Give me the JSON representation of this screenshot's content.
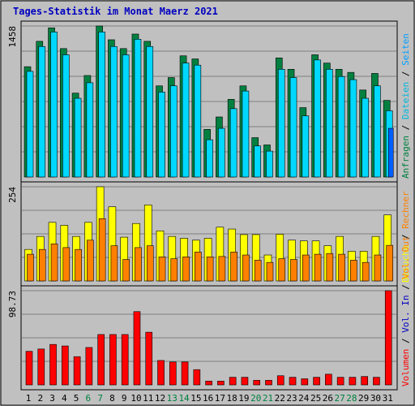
{
  "title": "Tages-Statistik im Monat Maerz 2021",
  "colors": {
    "background": "#c0c0c0",
    "grid": "#808080",
    "title": "#0000c0",
    "hits": "#008040",
    "files": "#00d8ff",
    "pages": "#0060ff",
    "visits": "#ffff00",
    "sites": "#ff8000",
    "kbytes_in": "#ff0000",
    "weekend_label": "#008040"
  },
  "chart_data": [
    {
      "type": "bar",
      "panel": "top",
      "ylabel_tick": "1458",
      "ylim": [
        0,
        1458
      ],
      "categories": [
        "1",
        "2",
        "3",
        "4",
        "5",
        "6",
        "7",
        "8",
        "9",
        "10",
        "11",
        "12",
        "13",
        "14",
        "15",
        "16",
        "17",
        "18",
        "19",
        "20",
        "21",
        "22",
        "23",
        "24",
        "25",
        "26",
        "27",
        "28",
        "29",
        "30",
        "31"
      ],
      "weekend_days": [
        "6",
        "7",
        "13",
        "14",
        "20",
        "21",
        "27",
        "28"
      ],
      "series": [
        {
          "name": "Anfragen",
          "values": [
            1065,
            1310,
            1440,
            1240,
            810,
            980,
            1458,
            1325,
            1240,
            1380,
            1310,
            880,
            960,
            1170,
            1140,
            460,
            580,
            750,
            880,
            380,
            310,
            1150,
            1040,
            670,
            1180,
            1100,
            1040,
            1010,
            840,
            1000,
            740
          ]
        },
        {
          "name": "Dateien",
          "values": [
            1020,
            1260,
            1400,
            1180,
            760,
            910,
            1400,
            1260,
            1180,
            1330,
            1260,
            820,
            880,
            1100,
            1080,
            360,
            470,
            660,
            830,
            300,
            250,
            1040,
            960,
            590,
            1130,
            1040,
            970,
            940,
            760,
            880,
            640
          ]
        },
        {
          "name": "Seiten",
          "values": [
            0,
            0,
            0,
            0,
            0,
            0,
            0,
            0,
            0,
            0,
            0,
            0,
            0,
            0,
            0,
            0,
            0,
            0,
            0,
            0,
            0,
            0,
            0,
            0,
            0,
            0,
            0,
            0,
            0,
            0,
            470
          ]
        }
      ]
    },
    {
      "type": "bar",
      "panel": "middle",
      "ylabel_tick": "254",
      "ylim": [
        0,
        254
      ],
      "categories": [
        "1",
        "2",
        "3",
        "4",
        "5",
        "6",
        "7",
        "8",
        "9",
        "10",
        "11",
        "12",
        "13",
        "14",
        "15",
        "16",
        "17",
        "18",
        "19",
        "20",
        "21",
        "22",
        "23",
        "24",
        "25",
        "26",
        "27",
        "28",
        "29",
        "30",
        "31"
      ],
      "series": [
        {
          "name": "Besuche",
          "values": [
            85,
            120,
            158,
            150,
            120,
            158,
            254,
            200,
            118,
            155,
            205,
            135,
            120,
            115,
            110,
            115,
            145,
            140,
            125,
            125,
            70,
            126,
            110,
            108,
            108,
            95,
            120,
            80,
            80,
            120,
            178
          ]
        },
        {
          "name": "Rechner",
          "values": [
            72,
            85,
            100,
            90,
            85,
            110,
            168,
            95,
            58,
            90,
            95,
            65,
            60,
            65,
            78,
            65,
            66,
            78,
            70,
            56,
            50,
            60,
            58,
            70,
            72,
            74,
            72,
            56,
            50,
            70,
            96
          ]
        }
      ]
    },
    {
      "type": "bar",
      "panel": "bottom",
      "ylabel_tick": "98.73",
      "ylim": [
        0,
        123.4
      ],
      "categories": [
        "1",
        "2",
        "3",
        "4",
        "5",
        "6",
        "7",
        "8",
        "9",
        "10",
        "11",
        "12",
        "13",
        "14",
        "15",
        "16",
        "17",
        "18",
        "19",
        "20",
        "21",
        "22",
        "23",
        "24",
        "25",
        "26",
        "27",
        "28",
        "29",
        "30",
        "31"
      ],
      "series": [
        {
          "name": "Volumen",
          "values": [
            44,
            47,
            53,
            51,
            37,
            49,
            66,
            66,
            66,
            96,
            69,
            32,
            30,
            30,
            20,
            5,
            5,
            10,
            10,
            6,
            6,
            12,
            10,
            8,
            10,
            14,
            10,
            10,
            11,
            10,
            123.4
          ]
        }
      ]
    }
  ],
  "legend_top": [
    {
      "text": "Anfragen",
      "color": "#008040"
    },
    {
      "text": " / ",
      "color": "#000000"
    },
    {
      "text": "Dateien",
      "color": "#00b8e0"
    },
    {
      "text": " / ",
      "color": "#000000"
    },
    {
      "text": "Seiten",
      "color": "#00a0ff"
    }
  ],
  "legend_middle": [
    {
      "text": "Besuche",
      "color": "#ffff00"
    },
    {
      "text": " / ",
      "color": "#000000"
    },
    {
      "text": "Rechner",
      "color": "#ff8000"
    }
  ],
  "legend_bottom": [
    {
      "text": "Volumen",
      "color": "#ff0000"
    },
    {
      "text": " / ",
      "color": "#000000"
    },
    {
      "text": "Vol. In",
      "color": "#0000c0"
    },
    {
      "text": " / ",
      "color": "#000000"
    },
    {
      "text": "Vol. Out",
      "color": "#ff8000"
    }
  ]
}
